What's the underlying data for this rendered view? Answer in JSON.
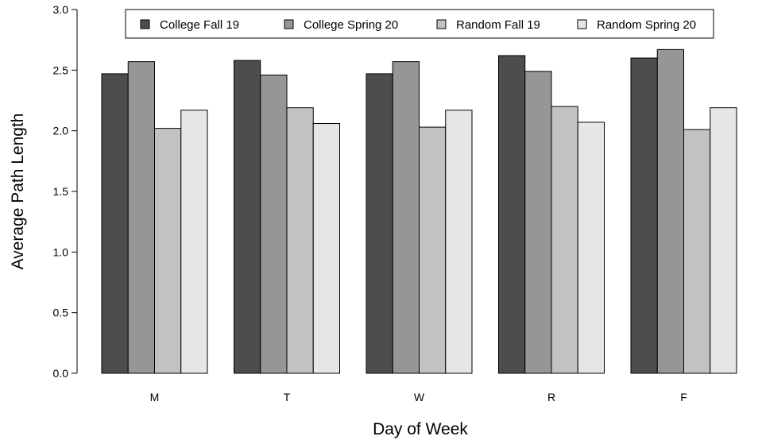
{
  "chart_data": {
    "type": "bar",
    "title": "",
    "xlabel": "Day of Week",
    "ylabel": "Average Path Length",
    "categories": [
      "M",
      "T",
      "W",
      "R",
      "F"
    ],
    "ylim": [
      0,
      3.0
    ],
    "yticks": [
      "0.0",
      "0.5",
      "1.0",
      "1.5",
      "2.0",
      "2.5",
      "3.0"
    ],
    "grid": false,
    "legend_position": "top",
    "series": [
      {
        "name": "College Fall 19",
        "color": "#4d4d4d",
        "values": [
          2.47,
          2.58,
          2.47,
          2.62,
          2.6
        ]
      },
      {
        "name": "College Spring 20",
        "color": "#969696",
        "values": [
          2.57,
          2.46,
          2.57,
          2.49,
          2.67
        ]
      },
      {
        "name": "Random Fall 19",
        "color": "#c2c2c2",
        "values": [
          2.02,
          2.19,
          2.03,
          2.2,
          2.01
        ]
      },
      {
        "name": "Random Spring 20",
        "color": "#e6e6e6",
        "values": [
          2.17,
          2.06,
          2.17,
          2.07,
          2.19
        ]
      }
    ]
  }
}
